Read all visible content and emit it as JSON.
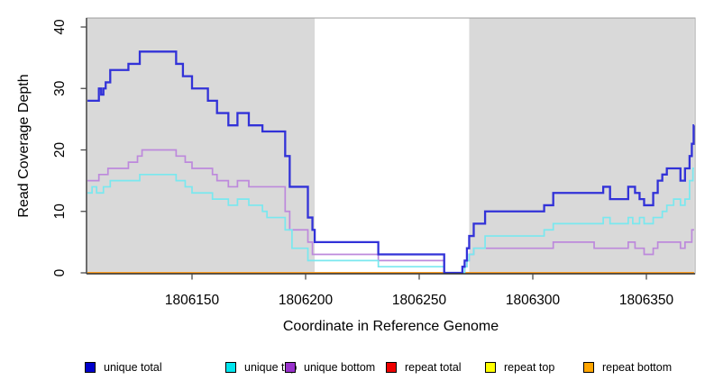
{
  "chart_data": {
    "type": "line",
    "step": true,
    "title": "",
    "xlabel": "Coordinate in Reference Genome",
    "ylabel": "Read Coverage Depth",
    "xlim": [
      1806104,
      1806371
    ],
    "ylim": [
      0,
      40
    ],
    "x_ticks": [
      1806150,
      1806200,
      1806250,
      1806300,
      1806350
    ],
    "y_ticks": [
      0,
      10,
      20,
      30,
      40
    ],
    "grid": false,
    "shade_color": "#d9d9d9",
    "shaded_x_ranges": [
      [
        1806104,
        1806204
      ],
      [
        1806272,
        1806371
      ]
    ],
    "unshaded_gap_x_range": [
      1806204,
      1806272
    ],
    "series": [
      {
        "name": "repeat total",
        "line_color": "#ff2222",
        "width": 1.6,
        "points": [
          [
            1806104,
            0
          ]
        ]
      },
      {
        "name": "repeat top",
        "line_color": "#ffee00",
        "width": 1.6,
        "points": [
          [
            1806104,
            0
          ]
        ]
      },
      {
        "name": "repeat bottom",
        "line_color": "#ffa126",
        "width": 2.0,
        "points": [
          [
            1806104,
            0
          ]
        ]
      },
      {
        "name": "unique bottom",
        "line_color": "#bd89dc",
        "width": 1.7,
        "points": [
          [
            1806104,
            15
          ],
          [
            1806109,
            16
          ],
          [
            1806113,
            17
          ],
          [
            1806122,
            18
          ],
          [
            1806126,
            19
          ],
          [
            1806128,
            20
          ],
          [
            1806143,
            19
          ],
          [
            1806147,
            18
          ],
          [
            1806150,
            17
          ],
          [
            1806159,
            16
          ],
          [
            1806161,
            15
          ],
          [
            1806166,
            14
          ],
          [
            1806170,
            15
          ],
          [
            1806175,
            14
          ],
          [
            1806191,
            10
          ],
          [
            1806193,
            7
          ],
          [
            1806201,
            5
          ],
          [
            1806203,
            3
          ],
          [
            1806232,
            2
          ],
          [
            1806261,
            0
          ],
          [
            1806270,
            1
          ],
          [
            1806271,
            2
          ],
          [
            1806272,
            3
          ],
          [
            1806274,
            4
          ],
          [
            1806309,
            5
          ],
          [
            1806327,
            4
          ],
          [
            1806342,
            5
          ],
          [
            1806345,
            4
          ],
          [
            1806349,
            3
          ],
          [
            1806353,
            4
          ],
          [
            1806355,
            5
          ],
          [
            1806365,
            4
          ],
          [
            1806367,
            5
          ],
          [
            1806370,
            7
          ]
        ]
      },
      {
        "name": "unique top",
        "line_color": "#79e8ef",
        "width": 1.7,
        "points": [
          [
            1806104,
            13
          ],
          [
            1806106,
            14
          ],
          [
            1806108,
            13
          ],
          [
            1806111,
            14
          ],
          [
            1806114,
            15
          ],
          [
            1806127,
            16
          ],
          [
            1806143,
            15
          ],
          [
            1806147,
            14
          ],
          [
            1806150,
            13
          ],
          [
            1806159,
            12
          ],
          [
            1806166,
            11
          ],
          [
            1806170,
            12
          ],
          [
            1806175,
            11
          ],
          [
            1806181,
            10
          ],
          [
            1806183,
            9
          ],
          [
            1806191,
            7
          ],
          [
            1806194,
            4
          ],
          [
            1806201,
            2
          ],
          [
            1806232,
            1
          ],
          [
            1806261,
            0
          ],
          [
            1806270,
            1
          ],
          [
            1806271,
            2
          ],
          [
            1806272,
            3
          ],
          [
            1806274,
            4
          ],
          [
            1806279,
            6
          ],
          [
            1806305,
            7
          ],
          [
            1806309,
            8
          ],
          [
            1806331,
            9
          ],
          [
            1806334,
            8
          ],
          [
            1806342,
            9
          ],
          [
            1806344,
            8
          ],
          [
            1806347,
            9
          ],
          [
            1806349,
            8
          ],
          [
            1806353,
            9
          ],
          [
            1806357,
            10
          ],
          [
            1806359,
            11
          ],
          [
            1806362,
            12
          ],
          [
            1806365,
            11
          ],
          [
            1806367,
            12
          ],
          [
            1806369,
            15
          ],
          [
            1806370.5,
            17
          ]
        ]
      },
      {
        "name": "unique total",
        "line_color": "#3232d8",
        "width": 2.3,
        "points": [
          [
            1806104,
            28
          ],
          [
            1806109,
            30
          ],
          [
            1806110,
            29
          ],
          [
            1806111,
            30
          ],
          [
            1806112,
            31
          ],
          [
            1806114,
            33
          ],
          [
            1806122,
            34
          ],
          [
            1806127,
            36
          ],
          [
            1806143,
            34
          ],
          [
            1806146,
            32
          ],
          [
            1806150,
            30
          ],
          [
            1806157,
            28
          ],
          [
            1806161,
            26
          ],
          [
            1806166,
            24
          ],
          [
            1806170,
            26
          ],
          [
            1806175,
            24
          ],
          [
            1806181,
            23
          ],
          [
            1806191,
            19
          ],
          [
            1806193,
            14
          ],
          [
            1806201,
            9
          ],
          [
            1806203,
            7
          ],
          [
            1806204,
            5
          ],
          [
            1806232,
            3
          ],
          [
            1806261,
            0
          ],
          [
            1806269,
            1
          ],
          [
            1806270,
            2
          ],
          [
            1806271,
            4
          ],
          [
            1806272,
            6
          ],
          [
            1806274,
            8
          ],
          [
            1806279,
            10
          ],
          [
            1806305,
            11
          ],
          [
            1806309,
            13
          ],
          [
            1806331,
            14
          ],
          [
            1806334,
            12
          ],
          [
            1806342,
            14
          ],
          [
            1806345,
            13
          ],
          [
            1806347,
            12
          ],
          [
            1806349,
            11
          ],
          [
            1806353,
            13
          ],
          [
            1806355,
            15
          ],
          [
            1806357,
            16
          ],
          [
            1806359,
            17
          ],
          [
            1806365,
            15
          ],
          [
            1806367,
            17
          ],
          [
            1806369,
            19
          ],
          [
            1806370,
            21
          ],
          [
            1806370.8,
            24
          ]
        ]
      }
    ],
    "legend": {
      "position": "bottom",
      "items": [
        {
          "label": "unique total",
          "swatch_color": "#0000cc"
        },
        {
          "label": "unique top",
          "swatch_color": "#00e5ee"
        },
        {
          "label": "unique bottom",
          "swatch_color": "#9932cc"
        },
        {
          "label": "repeat total",
          "swatch_color": "#ee0000"
        },
        {
          "label": "repeat top",
          "swatch_color": "#ffff00"
        },
        {
          "label": "repeat bottom",
          "swatch_color": "#ffa500"
        }
      ]
    }
  }
}
